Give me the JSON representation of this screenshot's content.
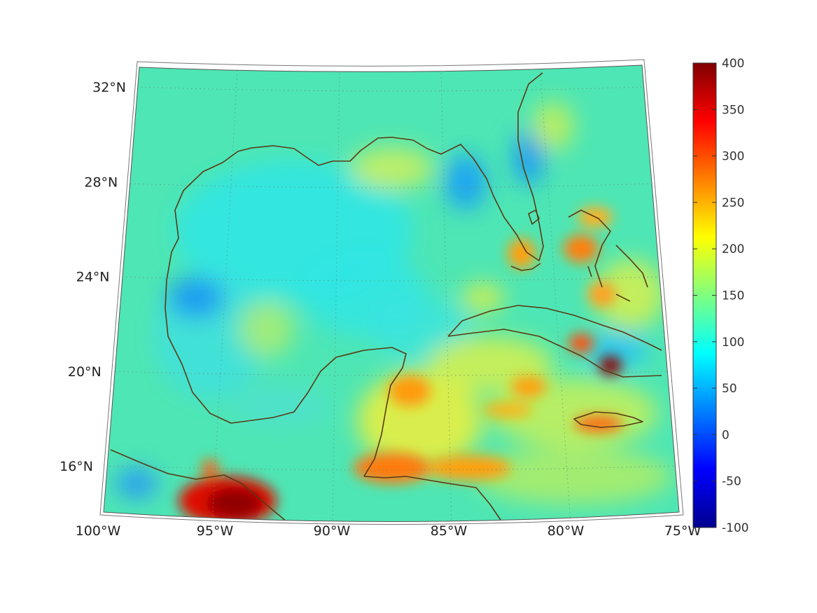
{
  "map": {
    "projection": "conic",
    "lon_range": [
      -100,
      -75
    ],
    "lat_range": [
      14,
      33
    ],
    "lon_ticks": [
      {
        "value": -100,
        "label": "100°W"
      },
      {
        "value": -95,
        "label": "95°W"
      },
      {
        "value": -90,
        "label": "90°W"
      },
      {
        "value": -85,
        "label": "85°W"
      },
      {
        "value": -80,
        "label": "80°W"
      },
      {
        "value": -75,
        "label": "75°W"
      }
    ],
    "lat_ticks": [
      {
        "value": 32,
        "label": "32°N"
      },
      {
        "value": 28,
        "label": "28°N"
      },
      {
        "value": 24,
        "label": "24°N"
      },
      {
        "value": 20,
        "label": "20°N"
      },
      {
        "value": 16,
        "label": "16°N"
      }
    ],
    "grid": true,
    "coastline_color": "#5a3a14",
    "field_base_color": "#4ee6b4"
  },
  "colorbar": {
    "colormap": "jet",
    "min": -100,
    "max": 400,
    "ticks": [
      {
        "value": 400,
        "label": "400"
      },
      {
        "value": 350,
        "label": "350"
      },
      {
        "value": 300,
        "label": "300"
      },
      {
        "value": 250,
        "label": "250"
      },
      {
        "value": 200,
        "label": "200"
      },
      {
        "value": 150,
        "label": "150"
      },
      {
        "value": 100,
        "label": "100"
      },
      {
        "value": 50,
        "label": "50"
      },
      {
        "value": 0,
        "label": "0"
      },
      {
        "value": -50,
        "label": "-50"
      },
      {
        "value": -100,
        "label": "-100"
      }
    ]
  }
}
